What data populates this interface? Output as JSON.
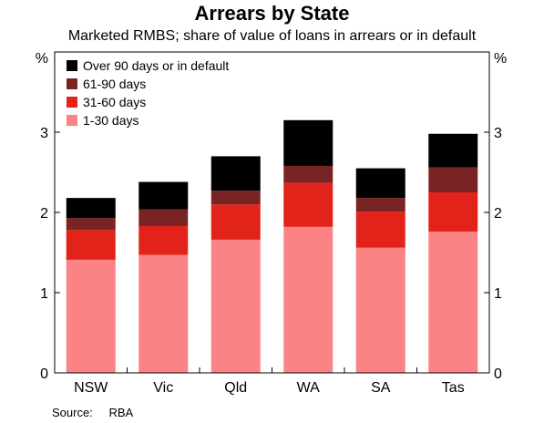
{
  "title": "Arrears by State",
  "subtitle": "Marketed RMBS; share of value of loans in arrears or in default",
  "source": {
    "label": "Source:",
    "value": "RBA"
  },
  "colors": {
    "over90": "#000000",
    "d61_90": "#7a2325",
    "d31_60": "#e2231a",
    "d1_30": "#fb8285"
  },
  "chart_data": {
    "type": "bar",
    "stacked": true,
    "title": "Arrears by State",
    "subtitle": "Marketed RMBS; share of value of loans in arrears or in default",
    "y_unit_left": "%",
    "y_unit_right": "%",
    "ylim": [
      0,
      4
    ],
    "yticks": [
      0,
      1,
      2,
      3
    ],
    "grid": false,
    "legend_position": "top-left",
    "categories": [
      "NSW",
      "Vic",
      "Qld",
      "WA",
      "SA",
      "Tas"
    ],
    "series": [
      {
        "name": "1-30 days",
        "color": "#fb8285",
        "values": [
          1.41,
          1.47,
          1.66,
          1.82,
          1.56,
          1.76
        ]
      },
      {
        "name": "31-60 days",
        "color": "#e2231a",
        "values": [
          0.37,
          0.36,
          0.44,
          0.55,
          0.45,
          0.49
        ]
      },
      {
        "name": "61-90 days",
        "color": "#7a2325",
        "values": [
          0.15,
          0.21,
          0.17,
          0.21,
          0.17,
          0.31
        ]
      },
      {
        "name": "Over 90 days or in default",
        "color": "#000000",
        "values": [
          0.25,
          0.34,
          0.43,
          0.57,
          0.37,
          0.42
        ]
      }
    ],
    "legend_order": [
      "Over 90 days or in default",
      "61-90 days",
      "31-60 days",
      "1-30 days"
    ]
  }
}
